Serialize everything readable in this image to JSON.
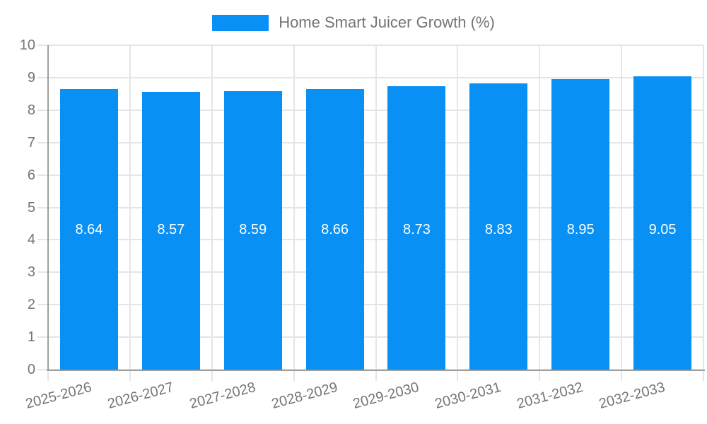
{
  "chart_data": {
    "type": "bar",
    "title": "Home Smart Juicer Growth (%)",
    "legend_label": "Home Smart Juicer Growth (%)",
    "legend_position": "top-center",
    "categories": [
      "2025-2026",
      "2026-2027",
      "2027-2028",
      "2028-2029",
      "2029-2030",
      "2030-2031",
      "2031-2032",
      "2032-2033"
    ],
    "values": [
      8.64,
      8.57,
      8.59,
      8.66,
      8.73,
      8.83,
      8.95,
      9.05
    ],
    "value_labels": [
      "8.64",
      "8.57",
      "8.59",
      "8.66",
      "8.73",
      "8.83",
      "8.95",
      "9.05"
    ],
    "xlabel": "",
    "ylabel": "",
    "ylim": [
      0,
      10
    ],
    "yticks": [
      0,
      1,
      2,
      3,
      4,
      5,
      6,
      7,
      8,
      9,
      10
    ],
    "grid": true,
    "colors": {
      "bar": "#0890f5",
      "value_label_text": "#ffffff",
      "axis_text": "#757575",
      "gridline": "#e5e5e5",
      "axis_line": "#9e9e9e",
      "background": "#ffffff"
    }
  }
}
